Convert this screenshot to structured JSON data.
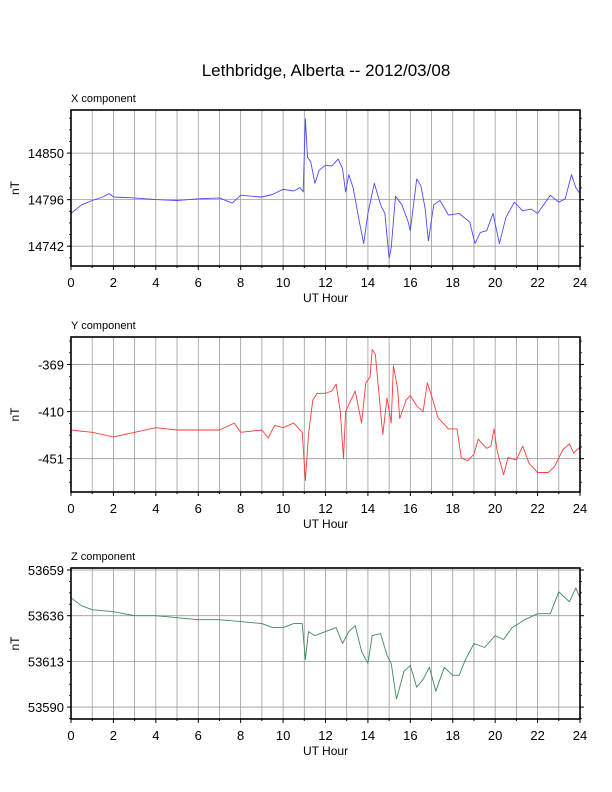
{
  "title": "Lethbridge, Alberta -- 2012/03/08",
  "chart_data": [
    {
      "type": "line",
      "title": "X component",
      "xlabel": "UT Hour",
      "ylabel": "nT",
      "xlim": [
        0,
        24
      ],
      "ylim": [
        14719,
        14900
      ],
      "xticks": [
        "0",
        "2",
        "4",
        "6",
        "8",
        "10",
        "12",
        "14",
        "16",
        "18",
        "20",
        "22",
        "24"
      ],
      "yticks": [
        14742,
        14796,
        14850
      ],
      "grid": true,
      "color": "#4b4bff",
      "x": [
        0,
        0.5,
        1,
        1.5,
        1.8,
        2,
        3,
        4,
        5,
        6,
        7,
        7.6,
        8,
        9,
        9.5,
        10,
        10.5,
        10.8,
        10.95,
        11.05,
        11.15,
        11.3,
        11.5,
        11.7,
        12,
        12.3,
        12.6,
        12.8,
        12.95,
        13.1,
        13.3,
        13.6,
        13.8,
        14,
        14.3,
        14.6,
        14.8,
        15.0,
        15.1,
        15.3,
        15.6,
        15.9,
        16.0,
        16.3,
        16.5,
        16.7,
        16.85,
        17.1,
        17.4,
        17.8,
        18.3,
        18.8,
        19.05,
        19.3,
        19.6,
        19.9,
        20.2,
        20.5,
        20.9,
        21.3,
        21.7,
        22,
        22.6,
        23,
        23.3,
        23.6,
        23.8,
        24
      ],
      "y": [
        14780,
        14790,
        14795,
        14799,
        14803,
        14799,
        14798,
        14796,
        14795,
        14797,
        14798,
        14792,
        14801,
        14799,
        14802,
        14808,
        14806,
        14810,
        14805,
        14890,
        14845,
        14840,
        14815,
        14830,
        14836,
        14835,
        14843,
        14832,
        14805,
        14825,
        14810,
        14770,
        14745,
        14780,
        14815,
        14790,
        14780,
        14728,
        14740,
        14800,
        14790,
        14770,
        14760,
        14820,
        14812,
        14785,
        14748,
        14790,
        14795,
        14778,
        14780,
        14770,
        14745,
        14758,
        14760,
        14780,
        14745,
        14775,
        14793,
        14783,
        14785,
        14780,
        14801,
        14793,
        14797,
        14825,
        14810,
        14803
      ]
    },
    {
      "type": "line",
      "title": "Y component",
      "xlabel": "UT Hour",
      "ylabel": "nT",
      "xlim": [
        0,
        24
      ],
      "ylim": [
        -480,
        -345
      ],
      "xticks": [
        "0",
        "2",
        "4",
        "6",
        "8",
        "10",
        "12",
        "14",
        "16",
        "18",
        "20",
        "22",
        "24"
      ],
      "yticks": [
        -451,
        -410,
        -369
      ],
      "grid": true,
      "color": "#ff3b3b",
      "x": [
        0,
        1,
        2,
        3,
        4,
        5,
        6,
        7,
        7.7,
        8,
        9,
        9.3,
        9.6,
        10,
        10.5,
        10.9,
        11.05,
        11.2,
        11.4,
        11.6,
        12,
        12.3,
        12.5,
        12.7,
        12.85,
        12.95,
        13.2,
        13.4,
        13.7,
        13.9,
        14.1,
        14.2,
        14.35,
        14.6,
        14.7,
        14.9,
        15.1,
        15.2,
        15.4,
        15.5,
        15.8,
        16.0,
        16.3,
        16.6,
        16.8,
        17.0,
        17.3,
        17.8,
        18.2,
        18.4,
        18.7,
        19.0,
        19.2,
        19.6,
        19.8,
        19.95,
        20.1,
        20.4,
        20.6,
        21.0,
        21.3,
        21.6,
        22.0,
        22.5,
        22.8,
        23.2,
        23.5,
        23.7,
        24
      ],
      "y": [
        -426,
        -428,
        -432,
        -428,
        -424,
        -426,
        -426,
        -426,
        -420,
        -428,
        -426,
        -433,
        -422,
        -424,
        -420,
        -428,
        -470,
        -430,
        -400,
        -394,
        -394,
        -392,
        -386,
        -410,
        -451,
        -410,
        -400,
        -392,
        -420,
        -385,
        -380,
        -356,
        -360,
        -410,
        -430,
        -398,
        -420,
        -370,
        -390,
        -416,
        -400,
        -396,
        -405,
        -410,
        -385,
        -396,
        -415,
        -425,
        -425,
        -450,
        -453,
        -447,
        -434,
        -442,
        -440,
        -425,
        -445,
        -465,
        -450,
        -452,
        -440,
        -455,
        -463,
        -463,
        -458,
        -443,
        -438,
        -446,
        -441
      ]
    },
    {
      "type": "line",
      "title": "Z component",
      "xlabel": "UT Hour",
      "ylabel": "nT",
      "xlim": [
        0,
        24
      ],
      "ylim": [
        53584,
        53660
      ],
      "xticks": [
        "0",
        "2",
        "4",
        "6",
        "8",
        "10",
        "12",
        "14",
        "16",
        "18",
        "20",
        "22",
        "24"
      ],
      "yticks": [
        53590,
        53613,
        53636,
        53659
      ],
      "grid": true,
      "color": "#3d8a5c",
      "x": [
        0,
        0.5,
        1,
        2,
        3,
        4,
        5,
        6,
        7,
        8,
        9,
        9.5,
        10,
        10.5,
        10.9,
        11.05,
        11.2,
        11.5,
        12,
        12.5,
        12.8,
        13.1,
        13.4,
        13.7,
        14,
        14.2,
        14.6,
        14.9,
        15.1,
        15.35,
        15.7,
        16.0,
        16.3,
        16.6,
        16.9,
        17.2,
        17.6,
        18.0,
        18.3,
        18.6,
        19.0,
        19.5,
        20.0,
        20.4,
        20.8,
        21.4,
        22.0,
        22.6,
        23.0,
        23.5,
        23.8,
        24
      ],
      "y": [
        53645,
        53641,
        53639,
        53638,
        53636,
        53636,
        53635,
        53634,
        53634,
        53633,
        53632,
        53630,
        53630,
        53632,
        53632,
        53614,
        53628,
        53626,
        53628,
        53630,
        53622,
        53628,
        53631,
        53618,
        53612,
        53626,
        53627,
        53616,
        53612,
        53594,
        53608,
        53611,
        53600,
        53604,
        53610,
        53598,
        53610,
        53606,
        53606,
        53614,
        53622,
        53620,
        53626,
        53624,
        53630,
        53634,
        53637,
        53637,
        53648,
        53643,
        53650,
        53645
      ]
    }
  ]
}
